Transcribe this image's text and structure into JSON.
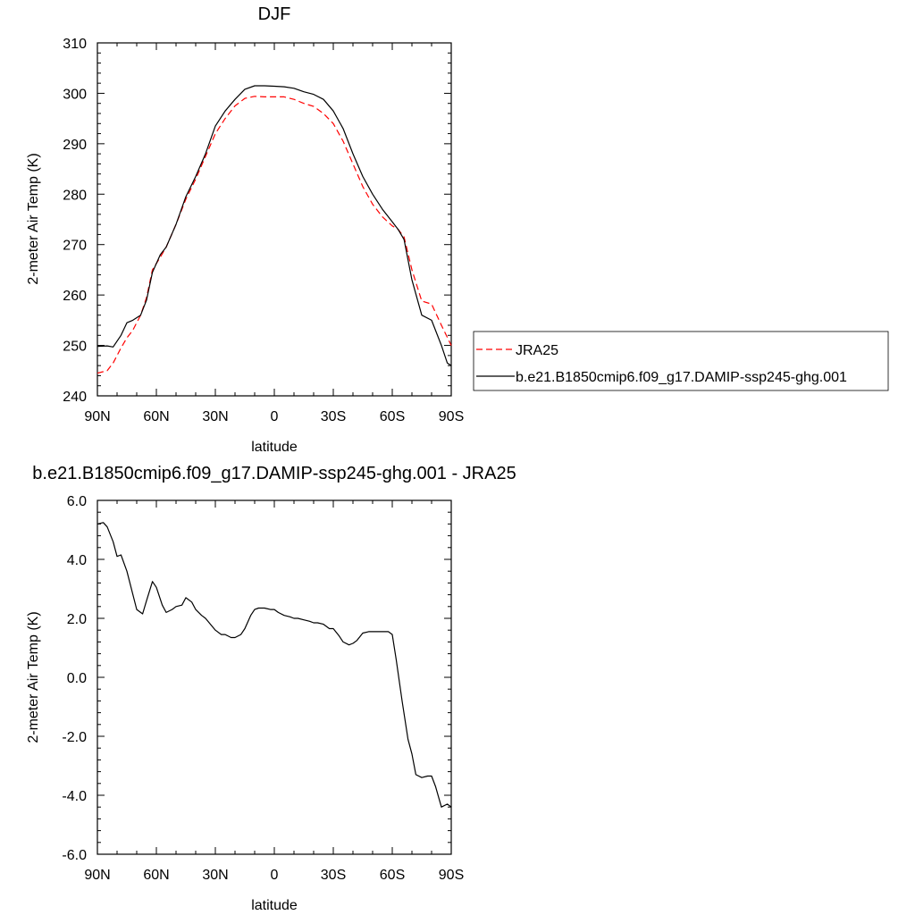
{
  "chart_data": [
    {
      "type": "line",
      "title": "DJF",
      "xlabel": "latitude",
      "ylabel": "2-meter Air Temp (K)",
      "xlim": [
        90,
        -90
      ],
      "ylim": [
        240,
        310
      ],
      "x_ticks": [
        90,
        60,
        30,
        0,
        -30,
        -60,
        -90
      ],
      "x_tick_labels": [
        "90N",
        "60N",
        "30N",
        "0",
        "30S",
        "60S",
        "90S"
      ],
      "y_ticks": [
        240,
        250,
        260,
        270,
        280,
        290,
        300,
        310
      ],
      "y_tick_labels": [
        "240",
        "250",
        "260",
        "270",
        "280",
        "290",
        "300",
        "310"
      ],
      "legend_position": "right",
      "series": [
        {
          "name": "JRA25",
          "color": "#ff0000",
          "dash": "dashed",
          "x": [
            90,
            85,
            82,
            78,
            75,
            72,
            68,
            65,
            62,
            58,
            55,
            50,
            45,
            40,
            35,
            30,
            25,
            20,
            15,
            10,
            5,
            0,
            -5,
            -10,
            -15,
            -20,
            -25,
            -30,
            -35,
            -40,
            -45,
            -50,
            -55,
            -60,
            -63,
            -66,
            -70,
            -75,
            -80,
            -85,
            -90
          ],
          "values": [
            244.5,
            245,
            246.5,
            249.5,
            251.5,
            253,
            256,
            259.5,
            265,
            267.5,
            269.5,
            274,
            279,
            283,
            287.5,
            292,
            295,
            297.5,
            299,
            299.4,
            299.3,
            299.3,
            299.3,
            298.8,
            298,
            297.4,
            296,
            294,
            290.5,
            286,
            281.5,
            278,
            275.5,
            273.7,
            273,
            271.5,
            265,
            258.8,
            258.2,
            254,
            250
          ]
        },
        {
          "name": "b.e21.B1850cmip6.f09_g17.DAMIP-ssp245-ghg.001",
          "color": "#000000",
          "dash": "solid",
          "x": [
            90,
            85,
            82,
            78,
            75,
            72,
            68,
            65,
            62,
            58,
            55,
            50,
            45,
            40,
            35,
            30,
            25,
            20,
            15,
            10,
            5,
            0,
            -5,
            -10,
            -15,
            -20,
            -25,
            -30,
            -35,
            -40,
            -45,
            -50,
            -55,
            -60,
            -63,
            -66,
            -70,
            -75,
            -80,
            -85,
            -88,
            -90
          ],
          "values": [
            249.8,
            249.9,
            249.7,
            252,
            254.5,
            255,
            256,
            259,
            264.5,
            268,
            269.5,
            274,
            279.5,
            283.5,
            288,
            293.5,
            296.5,
            298.8,
            300.8,
            301.5,
            301.5,
            301.4,
            301.3,
            301,
            300.3,
            299.8,
            298.8,
            296.5,
            293,
            288,
            283.5,
            280,
            277,
            274.5,
            273,
            271,
            263,
            256,
            255,
            250,
            246.5,
            246
          ]
        }
      ]
    },
    {
      "type": "line",
      "title": "b.e21.B1850cmip6.f09_g17.DAMIP-ssp245-ghg.001 - JRA25",
      "xlabel": "latitude",
      "ylabel": "2-meter Air Temp (K)",
      "xlim": [
        90,
        -90
      ],
      "ylim": [
        -6,
        6
      ],
      "x_ticks": [
        90,
        60,
        30,
        0,
        -30,
        -60,
        -90
      ],
      "x_tick_labels": [
        "90N",
        "60N",
        "30N",
        "0",
        "30S",
        "60S",
        "90S"
      ],
      "y_ticks": [
        -6,
        -4,
        -2,
        0,
        2,
        4,
        6
      ],
      "y_tick_labels": [
        "-6.0",
        "-4.0",
        "-2.0",
        "0.0",
        "2.0",
        "4.0",
        "6.0"
      ],
      "series": [
        {
          "color": "#000000",
          "dash": "solid",
          "x": [
            90,
            87,
            85,
            82,
            80,
            78,
            75,
            70,
            67,
            65,
            62,
            60,
            57,
            55,
            52,
            50,
            47,
            45,
            42,
            40,
            37,
            35,
            30,
            27,
            25,
            22,
            20,
            17,
            15,
            12,
            10,
            8,
            5,
            2,
            0,
            -2,
            -5,
            -8,
            -10,
            -12,
            -15,
            -18,
            -20,
            -22,
            -25,
            -28,
            -30,
            -33,
            -35,
            -38,
            -40,
            -42,
            -45,
            -48,
            -50,
            -55,
            -58,
            -60,
            -62,
            -65,
            -68,
            -70,
            -72,
            -75,
            -78,
            -80,
            -82,
            -85,
            -88,
            -90
          ],
          "values": [
            5.2,
            5.25,
            5.1,
            4.6,
            4.1,
            4.15,
            3.6,
            2.3,
            2.15,
            2.6,
            3.25,
            3.05,
            2.45,
            2.2,
            2.3,
            2.4,
            2.45,
            2.7,
            2.55,
            2.3,
            2.1,
            2.0,
            1.6,
            1.45,
            1.45,
            1.35,
            1.35,
            1.45,
            1.65,
            2.1,
            2.3,
            2.35,
            2.35,
            2.3,
            2.3,
            2.2,
            2.1,
            2.05,
            2.0,
            2.0,
            1.95,
            1.9,
            1.85,
            1.85,
            1.8,
            1.65,
            1.65,
            1.4,
            1.2,
            1.1,
            1.15,
            1.25,
            1.5,
            1.55,
            1.55,
            1.55,
            1.55,
            1.45,
            0.6,
            -0.8,
            -2.1,
            -2.6,
            -3.3,
            -3.4,
            -3.35,
            -3.35,
            -3.7,
            -4.4,
            -4.3,
            -4.4
          ]
        }
      ]
    }
  ]
}
